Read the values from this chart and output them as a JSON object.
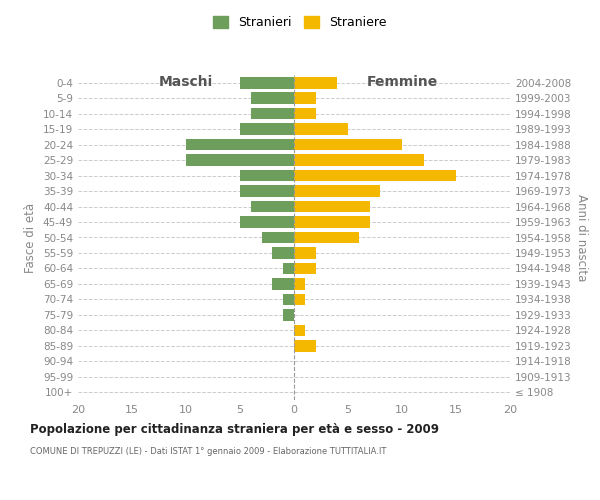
{
  "age_groups": [
    "100+",
    "95-99",
    "90-94",
    "85-89",
    "80-84",
    "75-79",
    "70-74",
    "65-69",
    "60-64",
    "55-59",
    "50-54",
    "45-49",
    "40-44",
    "35-39",
    "30-34",
    "25-29",
    "20-24",
    "15-19",
    "10-14",
    "5-9",
    "0-4"
  ],
  "birth_years": [
    "≤ 1908",
    "1909-1913",
    "1914-1918",
    "1919-1923",
    "1924-1928",
    "1929-1933",
    "1934-1938",
    "1939-1943",
    "1944-1948",
    "1949-1953",
    "1954-1958",
    "1959-1963",
    "1964-1968",
    "1969-1973",
    "1974-1978",
    "1979-1983",
    "1984-1988",
    "1989-1993",
    "1994-1998",
    "1999-2003",
    "2004-2008"
  ],
  "maschi": [
    0,
    0,
    0,
    0,
    0,
    1,
    1,
    2,
    1,
    2,
    3,
    5,
    4,
    5,
    5,
    10,
    10,
    5,
    4,
    4,
    5
  ],
  "femmine": [
    0,
    0,
    0,
    2,
    1,
    0,
    1,
    1,
    2,
    2,
    6,
    7,
    7,
    8,
    15,
    12,
    10,
    5,
    2,
    2,
    4
  ],
  "color_maschi": "#6d9e5b",
  "color_femmine": "#f5b800",
  "xlim": 20,
  "title": "Popolazione per cittadinanza straniera per età e sesso - 2009",
  "subtitle": "COMUNE DI TREPUZZI (LE) - Dati ISTAT 1° gennaio 2009 - Elaborazione TUTTITALIA.IT",
  "ylabel_left": "Fasce di età",
  "ylabel_right": "Anni di nascita",
  "label_maschi": "Maschi",
  "label_femmine": "Femmine",
  "legend_maschi": "Stranieri",
  "legend_femmine": "Straniere",
  "background_color": "#ffffff",
  "grid_color": "#cccccc",
  "bar_height": 0.75,
  "figsize": [
    6.0,
    5.0
  ],
  "dpi": 100
}
